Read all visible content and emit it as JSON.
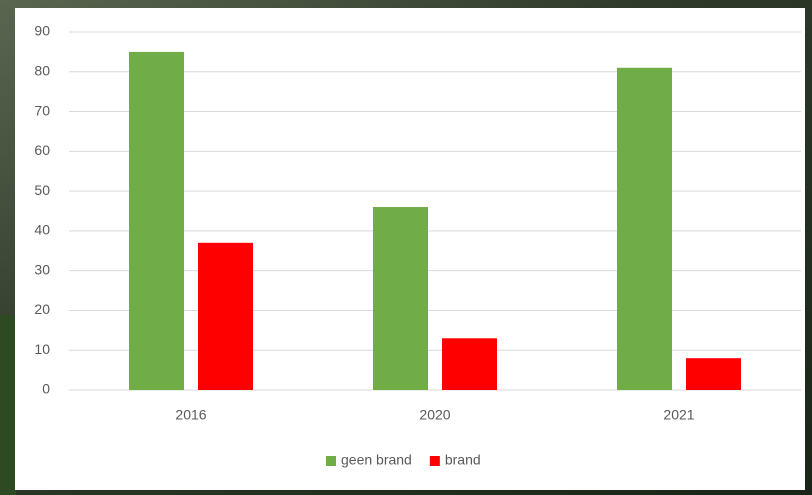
{
  "chart_data": {
    "type": "bar",
    "categories": [
      "2016",
      "2020",
      "2021"
    ],
    "series": [
      {
        "name": "geen brand",
        "color": "#70ad47",
        "values": [
          85,
          46,
          81
        ]
      },
      {
        "name": "brand",
        "color": "#ff0000",
        "values": [
          37,
          13,
          8
        ]
      }
    ],
    "ylim": [
      0,
      90
    ],
    "yticks": [
      0,
      10,
      20,
      30,
      40,
      50,
      60,
      70,
      80,
      90
    ],
    "grid": true,
    "legend": "bottom"
  }
}
